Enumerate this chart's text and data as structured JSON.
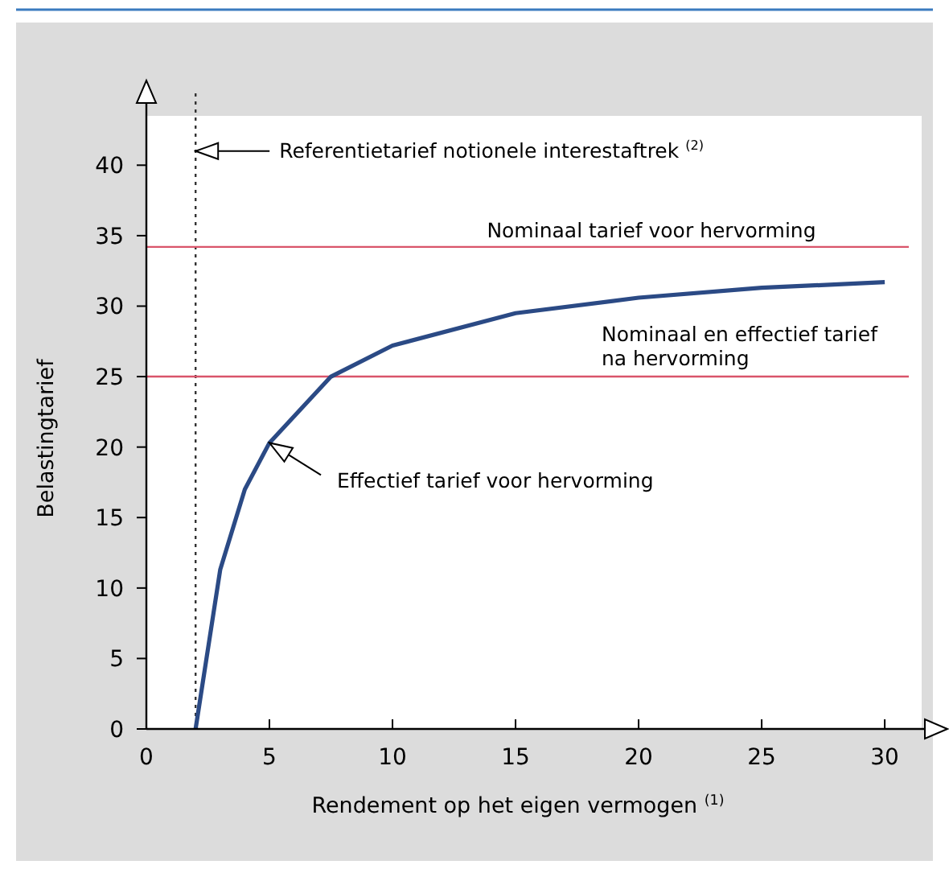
{
  "chart_data": {
    "type": "line",
    "xlabel": "Rendement op het eigen vermogen $^{(1)}$",
    "ylabel": "Belastingtarief",
    "x": [
      2,
      3,
      4,
      5,
      7.5,
      10,
      15,
      20,
      25,
      30
    ],
    "series": [
      {
        "color": "#2b4a85",
        "values": [
          0,
          11.3,
          17,
          20.3,
          25,
          27.2,
          29.5,
          30.6,
          31.3,
          31.7
        ]
      }
    ],
    "xlim": [
      0,
      31.5
    ],
    "ylim": [
      0,
      43.5
    ],
    "xticks": [
      0,
      5,
      10,
      15,
      20,
      25,
      30
    ],
    "yticks": [
      0,
      5,
      10,
      15,
      20,
      25,
      30,
      35,
      40
    ],
    "grid": false,
    "marker": "none",
    "line_style": "solid",
    "ref_lines": [
      {
        "axis": "x",
        "value": 2,
        "color": "#333333",
        "line_style": "dotted"
      },
      {
        "axis": "y",
        "value": 34.2,
        "label": "Nominaal tarief voor hervorming",
        "color": "#d9546a",
        "line_style": "solid"
      },
      {
        "axis": "y",
        "value": 25,
        "label": "Nominaal en effectief tarief na hervorming",
        "color": "#d9546a",
        "line_style": "solid"
      }
    ],
    "annotations": [
      {
        "text": "Referentietarief notionele interestaftrek $^{(2)}$",
        "x": 2,
        "y": 41
      },
      {
        "text": "Effectief tarief voor hervorming",
        "x": 5,
        "y": 20.3
      }
    ]
  }
}
